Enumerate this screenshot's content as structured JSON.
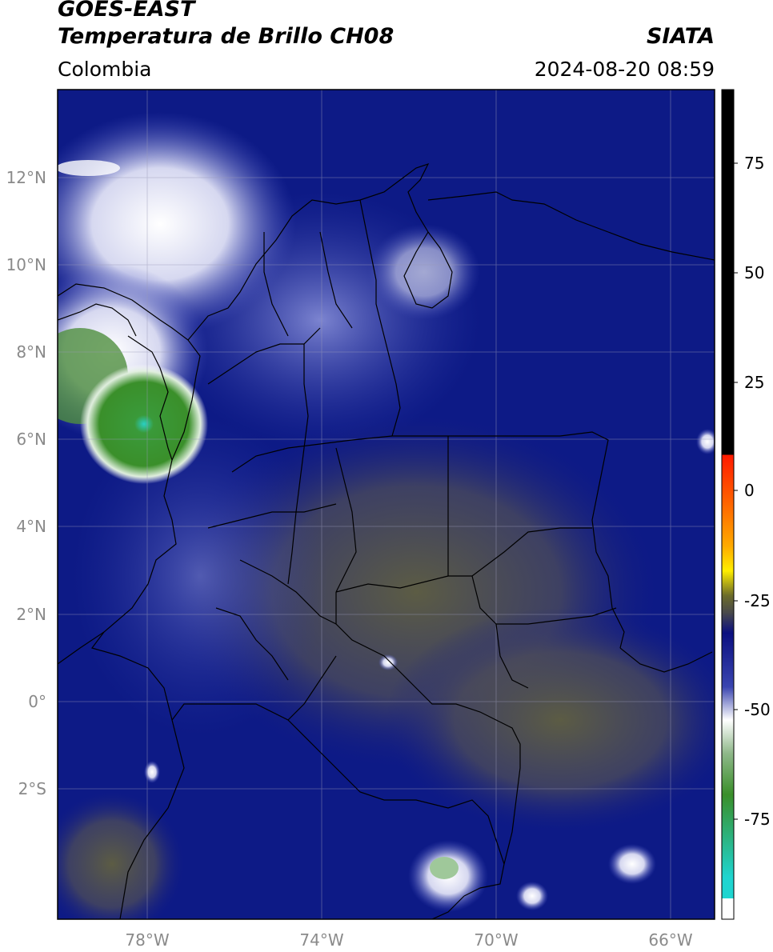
{
  "header": {
    "satellite": "GOES-EAST",
    "product": "Temperatura de Brillo CH08",
    "region": "Colombia",
    "agency": "SIATA",
    "datetime": "2024-08-20 08:59"
  },
  "axes": {
    "lat_labels": [
      "12°N",
      "10°N",
      "8°N",
      "6°N",
      "4°N",
      "2°N",
      "0°",
      "2°S"
    ],
    "lon_labels": [
      "78°W",
      "74°W",
      "70°W",
      "66°W"
    ]
  },
  "colorbar": {
    "tick_labels": [
      "75",
      "50",
      "25",
      "0",
      "-25",
      "-50",
      "-75"
    ],
    "colors": {
      "black": "#000000",
      "red": "#ff1a00",
      "orange": "#ff9900",
      "yellow": "#ffee00",
      "olive": "#6b6b2a",
      "navy": "#0b0f80",
      "blue": "#4b55c0",
      "white": "#ffffff",
      "green": "#3a8f2a",
      "cyan": "#1fd5d0"
    }
  },
  "colors": {
    "background": "#0d1a86",
    "cold_cloud": "#ffffff",
    "coldest": "#1fc7c0",
    "warm": "#5a5a45"
  }
}
